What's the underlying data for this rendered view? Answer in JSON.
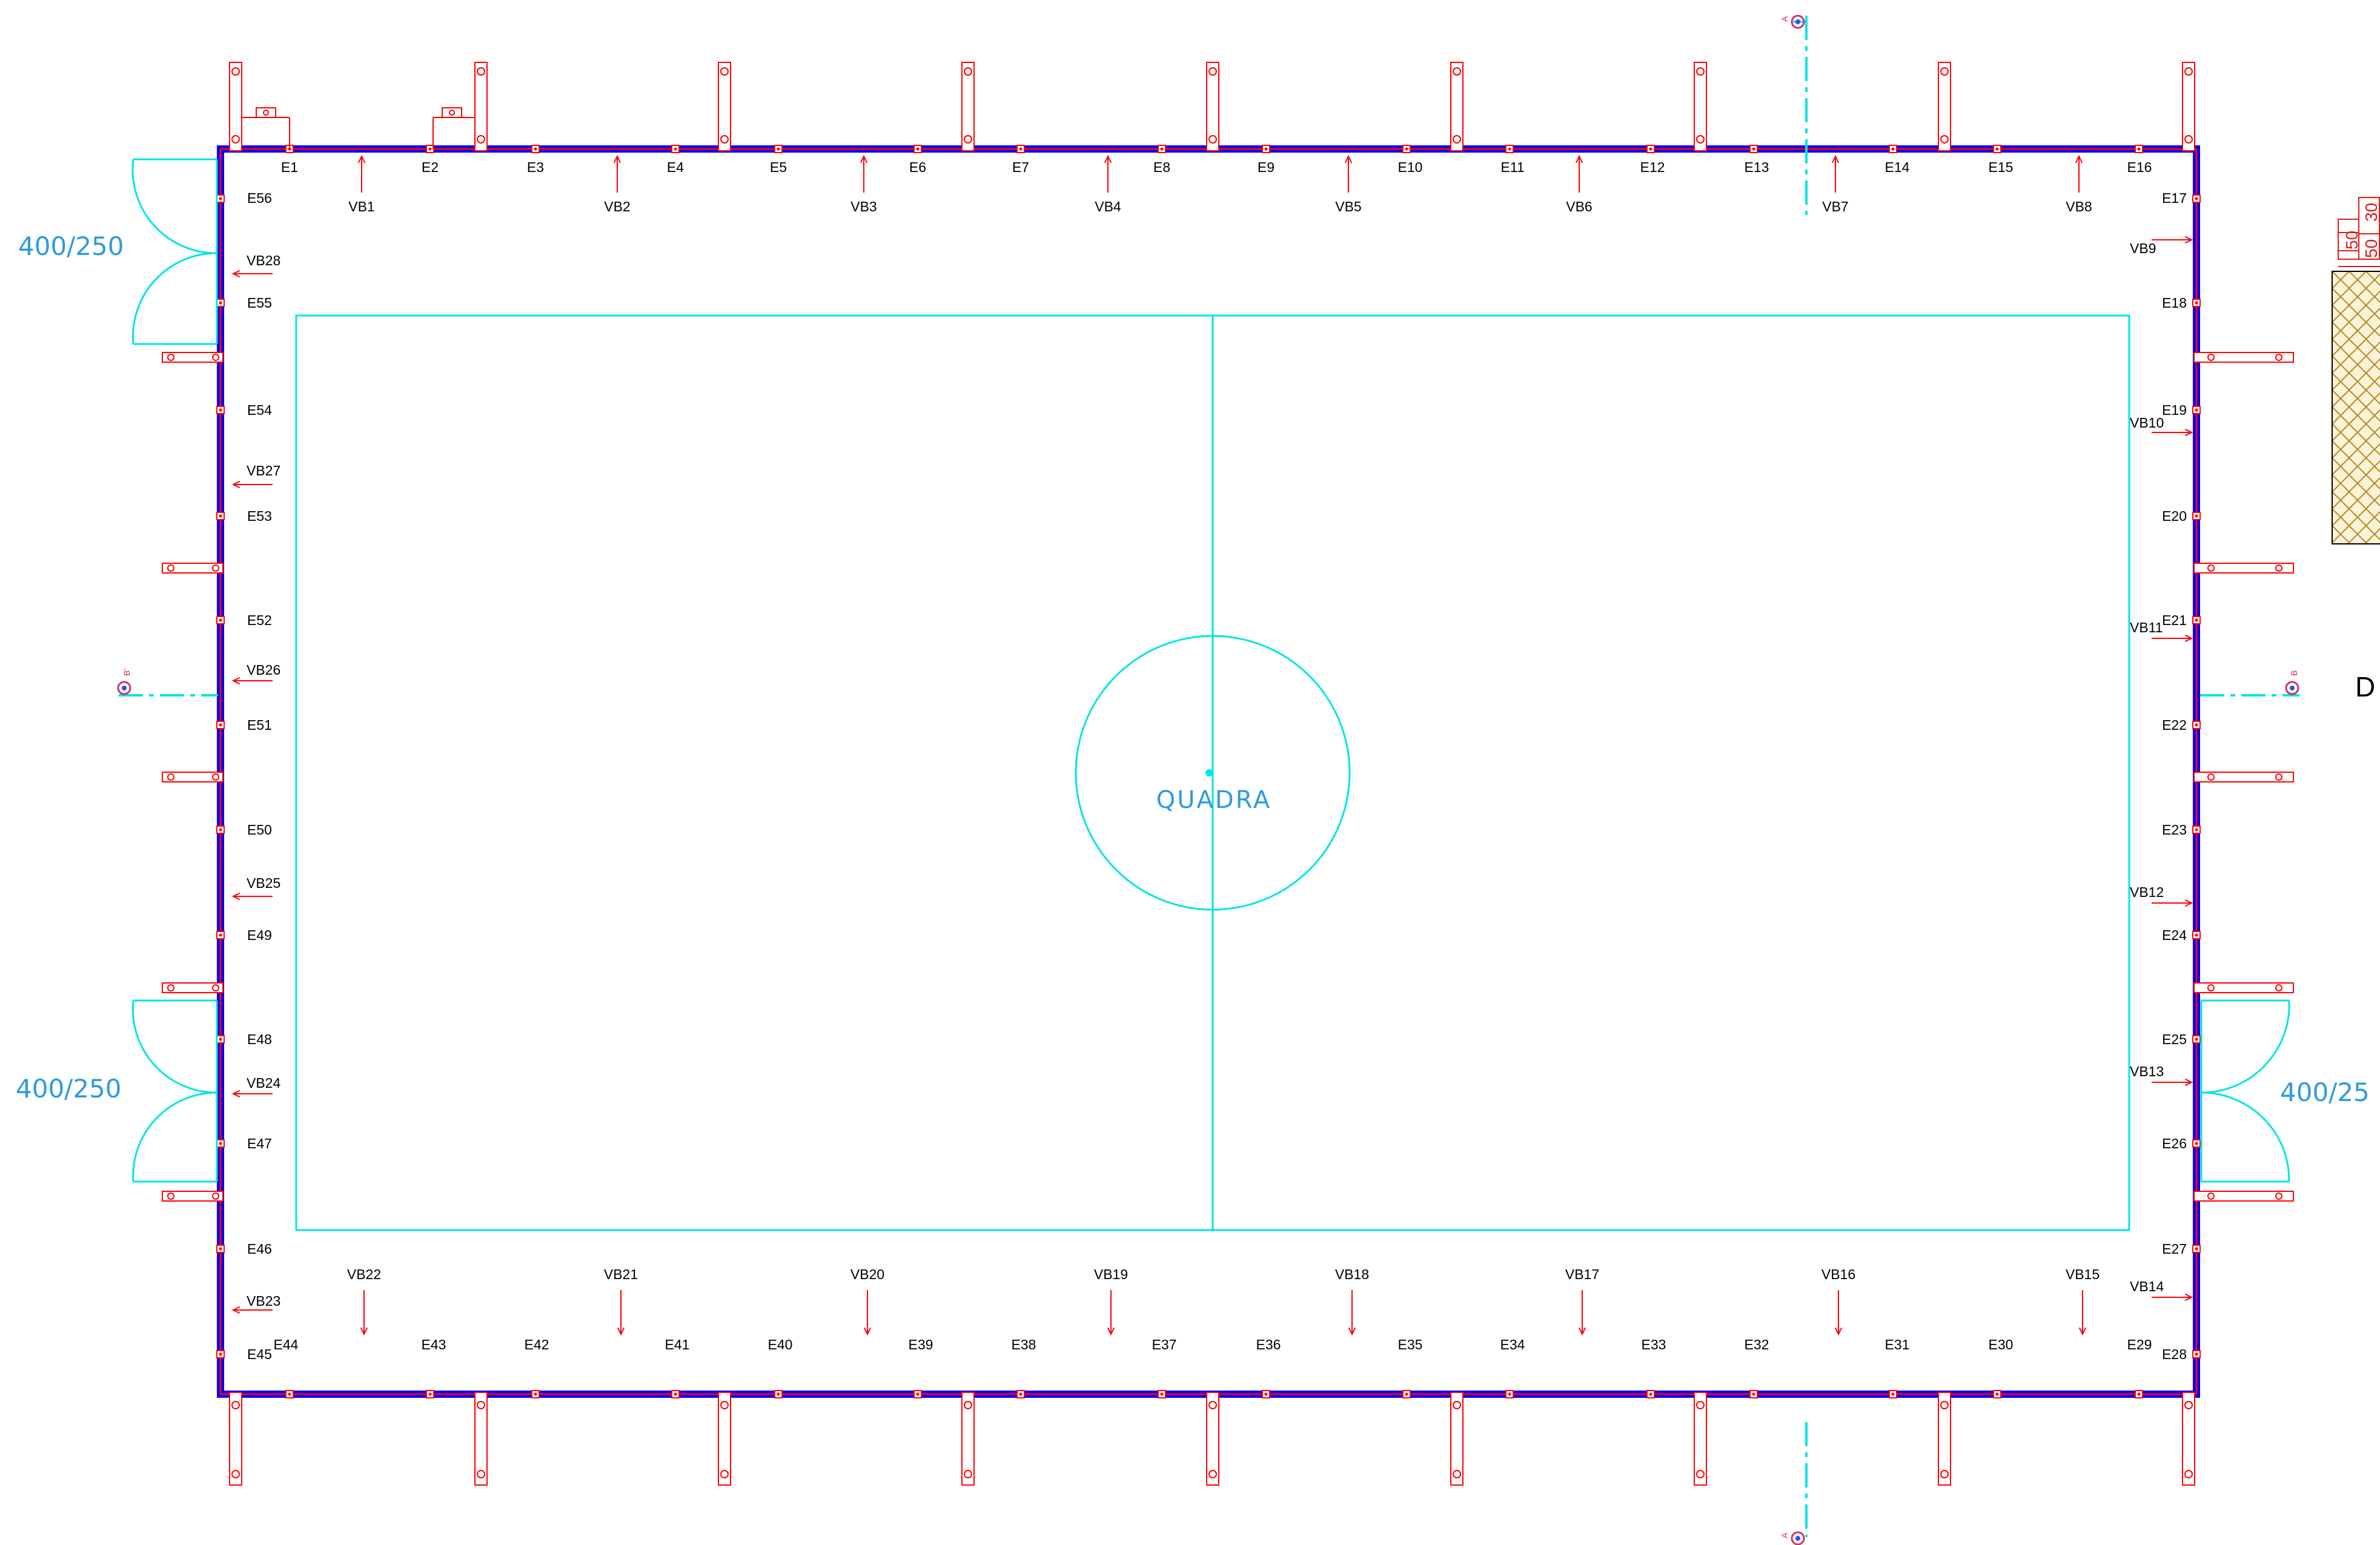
{
  "court_label": "QUADRA",
  "door_dims": {
    "top_left": "400/250",
    "bottom_left": "400/250",
    "right": "400/25"
  },
  "cut_markers": {
    "top": "A",
    "bottom": "A",
    "left": "B'",
    "right": "B"
  },
  "side_letter": "D",
  "detail_stack": {
    "a": "50",
    "b": "50",
    "c": "30"
  },
  "top_e": [
    "E1",
    "E2",
    "E3",
    "E4",
    "E5",
    "E6",
    "E7",
    "E8",
    "E9",
    "E10",
    "E11",
    "E12",
    "E13",
    "E14",
    "E15",
    "E16"
  ],
  "top_vb": [
    "VB1",
    "VB2",
    "VB3",
    "VB4",
    "VB5",
    "VB6",
    "VB7",
    "VB8"
  ],
  "right_e": [
    "E17",
    "E18",
    "E19",
    "E20",
    "E21",
    "E22",
    "E23",
    "E24",
    "E25",
    "E26",
    "E27",
    "E28"
  ],
  "right_vb": [
    "VB9",
    "VB10",
    "VB11",
    "VB12",
    "VB13",
    "VB14"
  ],
  "bottom_e": [
    "E29",
    "E30",
    "E31",
    "E32",
    "E33",
    "E34",
    "E35",
    "E36",
    "E37",
    "E38",
    "E39",
    "E40",
    "E41",
    "E42",
    "E43",
    "E44"
  ],
  "bottom_vb": [
    "VB15",
    "VB16",
    "VB17",
    "VB18",
    "VB19",
    "VB20",
    "VB21",
    "VB22"
  ],
  "left_e": [
    "E45",
    "E46",
    "E47",
    "E48",
    "E49",
    "E50",
    "E51",
    "E52",
    "E53",
    "E54",
    "E55",
    "E56"
  ],
  "left_vb": [
    "VB23",
    "VB24",
    "VB25",
    "VB26",
    "VB27",
    "VB28"
  ],
  "colors": {
    "wall": "#0000ff",
    "structure": "#ff0000",
    "court": "#00e5e5",
    "dimension_text": "#2f9bdc"
  }
}
